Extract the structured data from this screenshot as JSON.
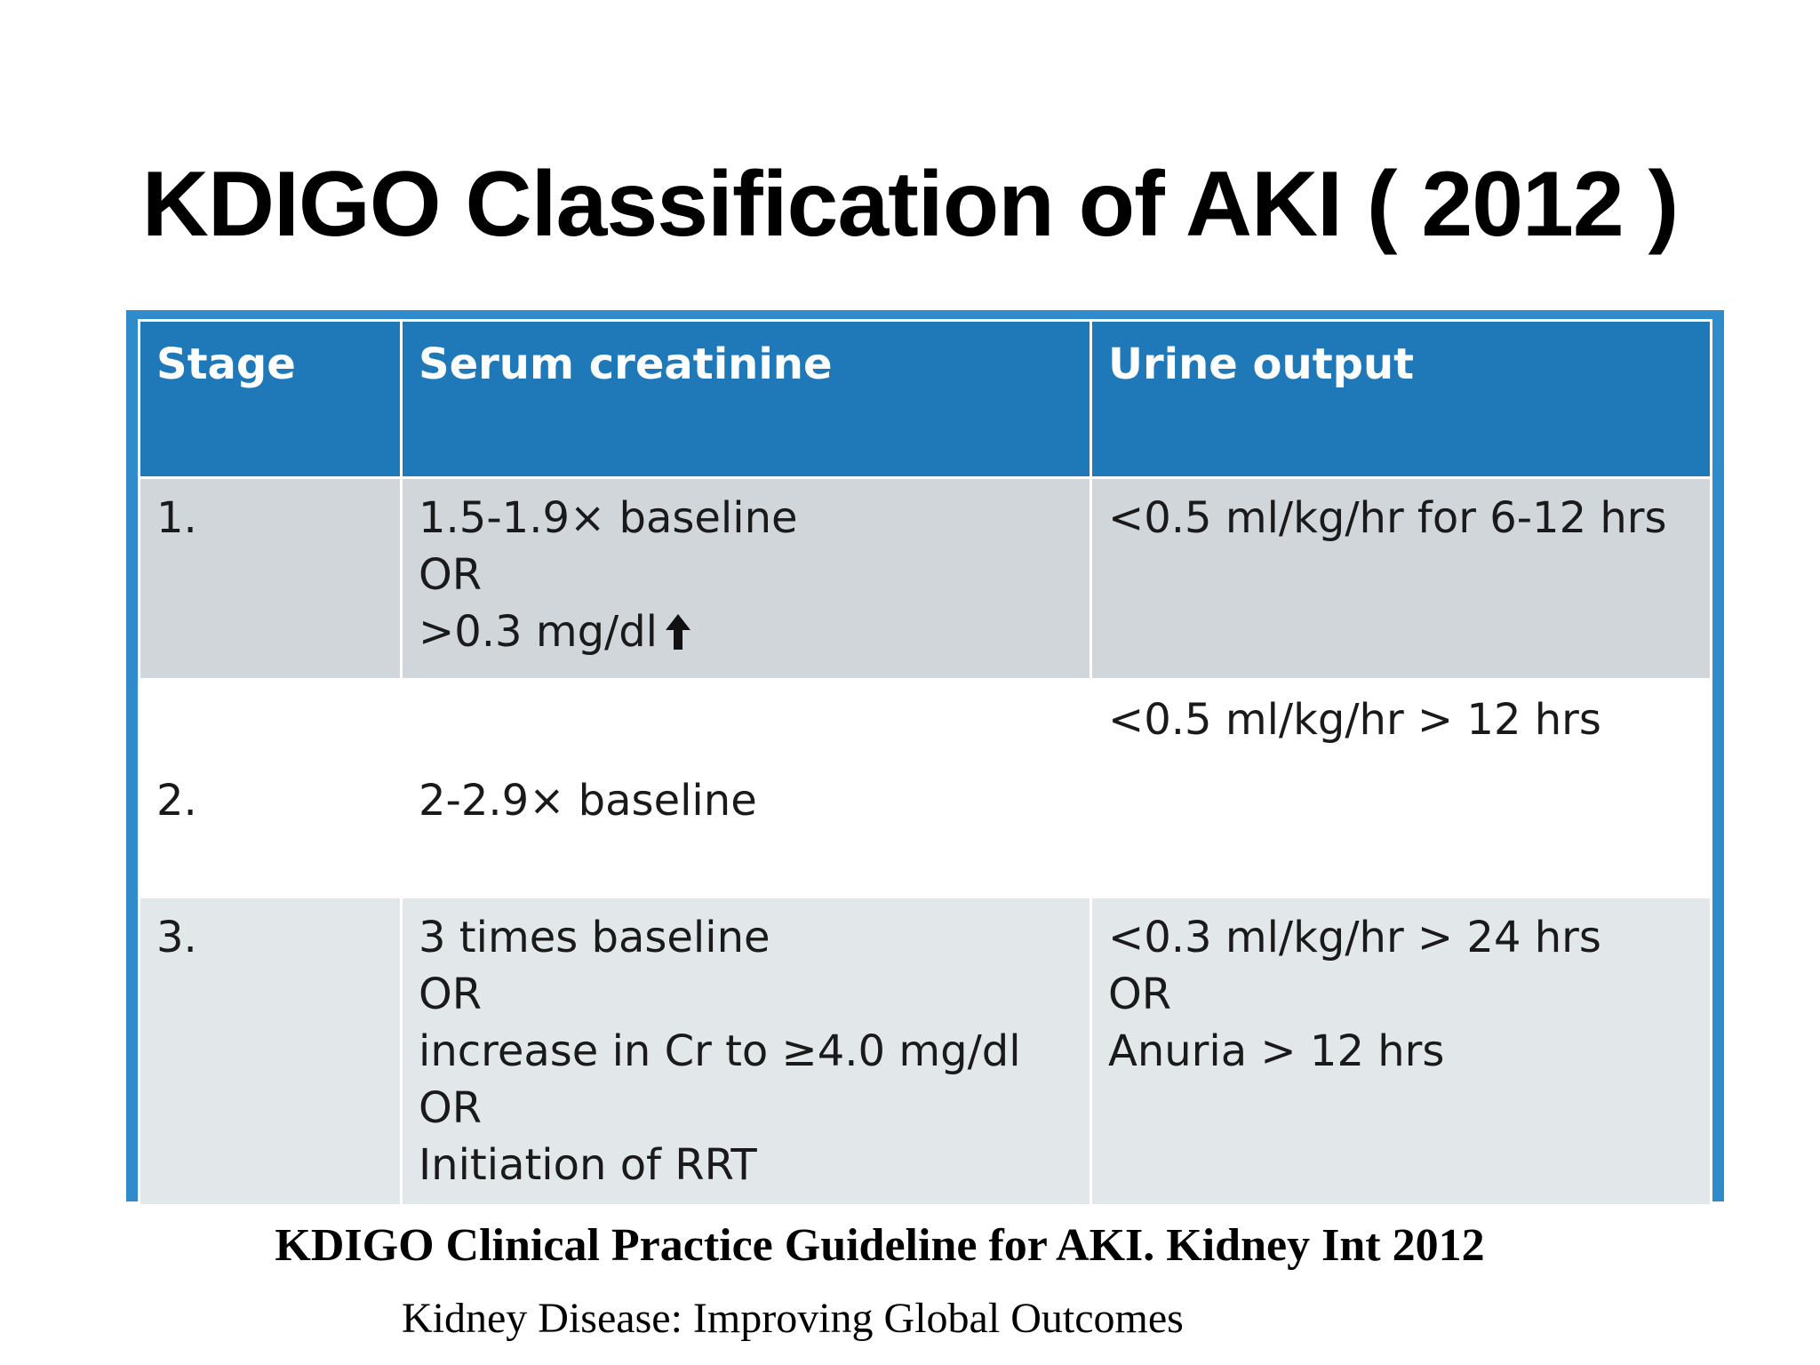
{
  "title": "KDIGO Classification of AKI ( 2012 )",
  "table": {
    "headers": [
      "Stage",
      "Serum creatinine",
      "Urine output"
    ],
    "rows": [
      {
        "stage": "1.",
        "creatinine": [
          "1.5-1.9× baseline",
          "OR",
          ">0.3 mg/dl"
        ],
        "urine": [
          "<0.5 ml/kg/hr for 6-12 hrs"
        ]
      },
      {
        "stage": "2.",
        "creatinine": [
          "2-2.9× baseline"
        ],
        "urine": [
          "<0.5 ml/kg/hr > 12 hrs"
        ]
      },
      {
        "stage": "3.",
        "creatinine": [
          "3 times baseline",
          "OR",
          "increase in Cr to ≥4.0 mg/dl",
          "OR",
          "Initiation of RRT"
        ],
        "urine": [
          "<0.3 ml/kg/hr > 24 hrs",
          "OR",
          "Anuria > 12 hrs"
        ]
      }
    ]
  },
  "icons": {
    "increase_indicator": "up-arrow-icon"
  },
  "colors": {
    "header_bg": "#1f78b8",
    "frame": "#2f8bc9",
    "row_odd_bg": "#d0d6da",
    "row_even_bg": "#ffffff"
  },
  "citation": "KDIGO Clinical Practice Guideline for AKI. Kidney Int  2012",
  "subtitle": "Kidney Disease: Improving Global Outcomes"
}
